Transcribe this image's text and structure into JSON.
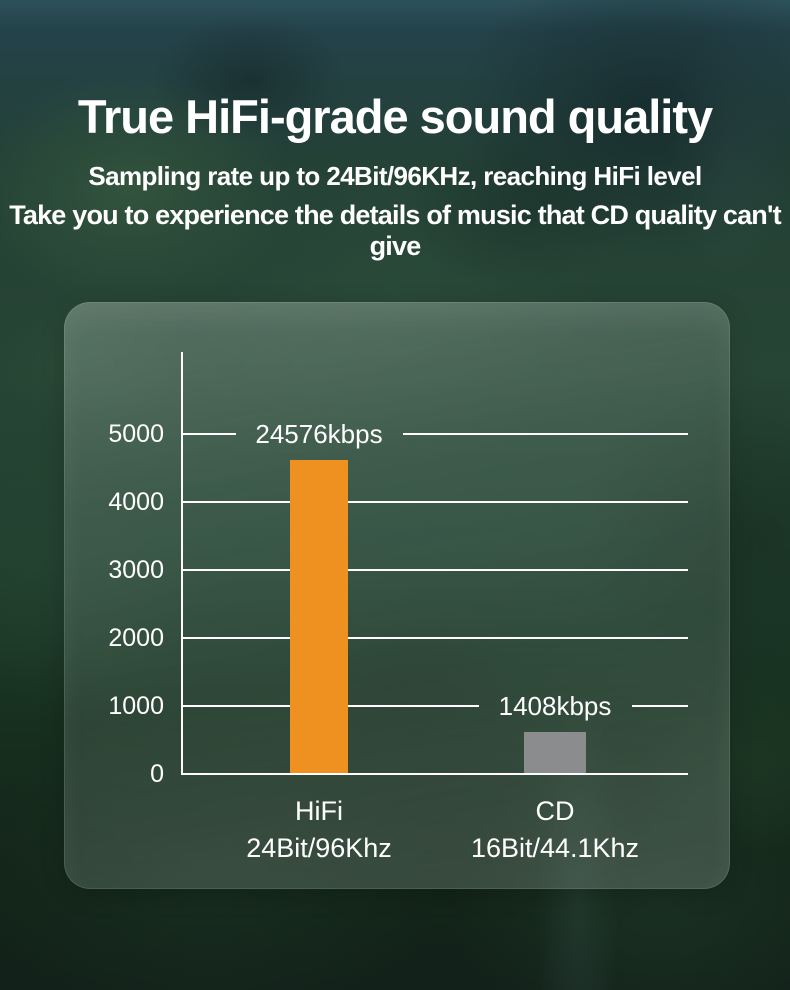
{
  "header": {
    "title": "True HiFi-grade sound quality",
    "subtitle1": "Sampling rate up to 24Bit/96KHz, reaching HiFi level",
    "subtitle2": "Take you to experience the details of music that CD quality can't give"
  },
  "colors": {
    "hifi_bar": "#EE9120",
    "cd_bar": "#8A8C8E",
    "grid_line": "#FFFFFF",
    "text": "#FFFFFF"
  },
  "chart_data": {
    "type": "bar",
    "title": "",
    "xlabel": "",
    "ylabel": "",
    "ylim": [
      0,
      5000
    ],
    "yticks": [
      0,
      1000,
      2000,
      3000,
      4000,
      5000
    ],
    "grid": true,
    "legend": "none",
    "bars": [
      {
        "category": "HiFi",
        "subcategory": "24Bit/96Khz",
        "value_kbps": 24576,
        "value_label": "24576kbps",
        "display_units": 4600,
        "label_on_tick": 5000,
        "color": "#EE9120"
      },
      {
        "category": "CD",
        "subcategory": "16Bit/44.1Khz",
        "value_kbps": 1408,
        "value_label": "1408kbps",
        "display_units": 600,
        "label_on_tick": 1000,
        "color": "#8A8C8E"
      }
    ]
  }
}
